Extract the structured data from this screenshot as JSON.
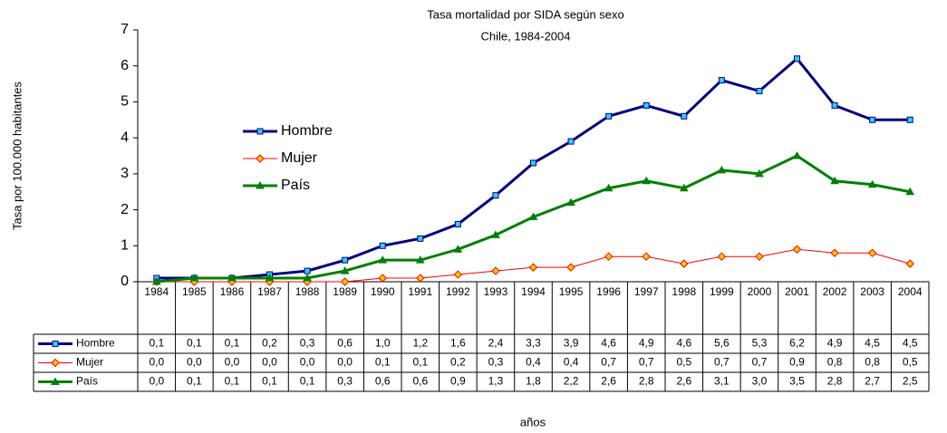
{
  "chart_data": {
    "type": "line",
    "title": "Tasa mortalidad por SIDA según sexo",
    "subtitle": "Chile, 1984-2004",
    "y_label": "Tasa por 100.000 habitantes",
    "x_label": "años",
    "categories": [
      "1984",
      "1985",
      "1986",
      "1987",
      "1988",
      "1989",
      "1990",
      "1991",
      "1992",
      "1993",
      "1994",
      "1995",
      "1996",
      "1997",
      "1998",
      "1999",
      "2000",
      "2001",
      "2002",
      "2003",
      "2004"
    ],
    "ylim": [
      0,
      7
    ],
    "yticks": [
      0,
      1,
      2,
      3,
      4,
      5,
      6,
      7
    ],
    "grid": false,
    "series": [
      {
        "name": "Hombre",
        "color": "#000080",
        "marker": "square",
        "marker_color": "#33ccff",
        "values": [
          0.1,
          0.1,
          0.1,
          0.2,
          0.3,
          0.6,
          1.0,
          1.2,
          1.6,
          2.4,
          3.3,
          3.9,
          4.6,
          4.9,
          4.6,
          5.6,
          5.3,
          6.2,
          4.9,
          4.5,
          4.5
        ],
        "value_labels": [
          "0,1",
          "0,1",
          "0,1",
          "0,2",
          "0,3",
          "0,6",
          "1,0",
          "1,2",
          "1,6",
          "2,4",
          "3,3",
          "3,9",
          "4,6",
          "4,9",
          "4,6",
          "5,6",
          "5,3",
          "6,2",
          "4,9",
          "4,5",
          "4,5"
        ]
      },
      {
        "name": "Mujer",
        "color": "#ff0000",
        "marker": "diamond",
        "marker_color": "#ffcc00",
        "values": [
          0.0,
          0.0,
          0.0,
          0.0,
          0.0,
          0.0,
          0.1,
          0.1,
          0.2,
          0.3,
          0.4,
          0.4,
          0.7,
          0.7,
          0.5,
          0.7,
          0.7,
          0.9,
          0.8,
          0.8,
          0.5
        ],
        "value_labels": [
          "0,0",
          "0,0",
          "0,0",
          "0,0",
          "0,0",
          "0,0",
          "0,1",
          "0,1",
          "0,2",
          "0,3",
          "0,4",
          "0,4",
          "0,7",
          "0,7",
          "0,5",
          "0,7",
          "0,7",
          "0,9",
          "0,8",
          "0,8",
          "0,5"
        ]
      },
      {
        "name": "País",
        "color": "#008000",
        "marker": "triangle",
        "marker_color": "#00a000",
        "values": [
          0.0,
          0.1,
          0.1,
          0.1,
          0.1,
          0.3,
          0.6,
          0.6,
          0.9,
          1.3,
          1.8,
          2.2,
          2.6,
          2.8,
          2.6,
          3.1,
          3.0,
          3.5,
          2.8,
          2.7,
          2.5
        ],
        "value_labels": [
          "0,0",
          "0,1",
          "0,1",
          "0,1",
          "0,1",
          "0,3",
          "0,6",
          "0,6",
          "0,9",
          "1,3",
          "1,8",
          "2,2",
          "2,6",
          "2,8",
          "2,6",
          "3,1",
          "3,0",
          "3,5",
          "2,8",
          "2,7",
          "2,5"
        ]
      }
    ]
  }
}
